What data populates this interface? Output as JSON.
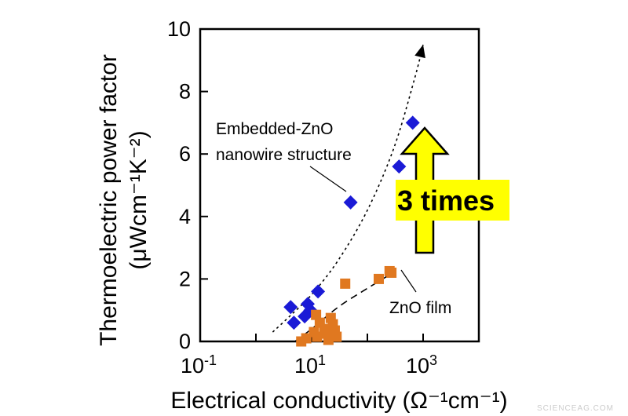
{
  "chart_data": {
    "type": "scatter",
    "ylabel_line1": "Thermoelectric power factor",
    "ylabel_line2": "(μWcm⁻¹K⁻²)",
    "xlabel": "Electrical conductivity (Ω⁻¹cm⁻¹)",
    "x_scale": "log",
    "xlim": [
      0.1,
      10000
    ],
    "ylim": [
      0,
      10
    ],
    "x_ticks": [
      {
        "value": 0.1,
        "base": "10",
        "exp": "-1"
      },
      {
        "value": 10,
        "base": "10",
        "exp": "1"
      },
      {
        "value": 1000,
        "base": "10",
        "exp": "3"
      }
    ],
    "y_ticks": [
      "0",
      "2",
      "4",
      "6",
      "8",
      "10"
    ],
    "y_tick_values": [
      0,
      2,
      4,
      6,
      8,
      10
    ],
    "grid": false,
    "series": [
      {
        "name": "Embedded-ZnO nanowire structure",
        "marker": "diamond",
        "color": "#1a1ad6",
        "points": [
          [
            4.2,
            1.1
          ],
          [
            4.8,
            0.6
          ],
          [
            7.5,
            0.8
          ],
          [
            8.5,
            1.2
          ],
          [
            9.5,
            1.0
          ],
          [
            13,
            1.6
          ],
          [
            50,
            4.45
          ],
          [
            370,
            5.6
          ],
          [
            650,
            7.0
          ]
        ]
      },
      {
        "name": "ZnO film",
        "marker": "square",
        "color": "#e07820",
        "points": [
          [
            6.5,
            0.0
          ],
          [
            8,
            0.1
          ],
          [
            11,
            0.3
          ],
          [
            12,
            0.85
          ],
          [
            12.5,
            0.15
          ],
          [
            14,
            0.6
          ],
          [
            17,
            0.4
          ],
          [
            18,
            0.25
          ],
          [
            20,
            0.05
          ],
          [
            22,
            0.75
          ],
          [
            24,
            0.55
          ],
          [
            26,
            0.35
          ],
          [
            28,
            0.15
          ],
          [
            40,
            1.85
          ],
          [
            160,
            2.0
          ],
          [
            250,
            2.25
          ],
          [
            270,
            2.2
          ]
        ]
      }
    ],
    "trend_lines": [
      {
        "series": "Embedded-ZnO nanowire structure",
        "style": "dashed-arrow",
        "points": [
          [
            2,
            0.3
          ],
          [
            4,
            0.8
          ],
          [
            10,
            1.5
          ],
          [
            30,
            2.6
          ],
          [
            100,
            4.2
          ],
          [
            300,
            6.2
          ],
          [
            700,
            8.4
          ],
          [
            1000,
            9.5
          ]
        ]
      },
      {
        "series": "ZnO film",
        "style": "dashed",
        "points": [
          [
            5,
            0.0
          ],
          [
            10,
            0.4
          ],
          [
            30,
            1.1
          ],
          [
            100,
            1.7
          ],
          [
            260,
            2.15
          ]
        ]
      }
    ],
    "annotations": {
      "nanowire_line1": "Embedded-ZnO",
      "nanowire_line2": "nanowire structure",
      "film": "ZnO film",
      "callout": "3 times"
    }
  },
  "colors": {
    "nanowire": "#1a1ad6",
    "film": "#e07820",
    "arrow_fill": "#ffff00",
    "arrow_stroke": "#000000"
  },
  "watermark": "SCIENCEAG.COM"
}
